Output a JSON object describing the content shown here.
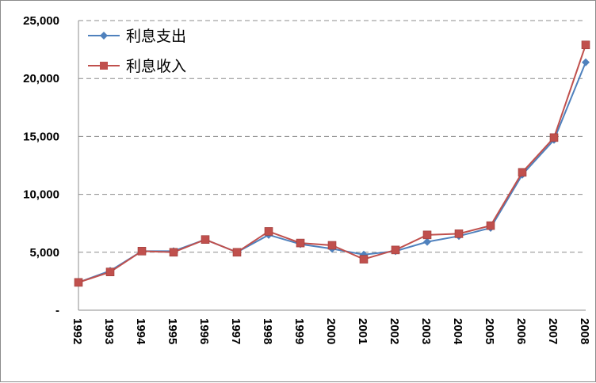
{
  "chart_data": {
    "type": "line",
    "title": "",
    "xlabel": "",
    "ylabel": "",
    "categories": [
      "1992",
      "1993",
      "1994",
      "1995",
      "1996",
      "1997",
      "1998",
      "1999",
      "2000",
      "2001",
      "2002",
      "2003",
      "2004",
      "2005",
      "2006",
      "2007",
      "2008"
    ],
    "ylim": [
      0,
      25000
    ],
    "y_ticks": [
      0,
      5000,
      10000,
      15000,
      20000,
      25000
    ],
    "y_tick_labels": [
      "-",
      "5,000",
      "10,000",
      "15,000",
      "20,000",
      "25,000"
    ],
    "grid": "horizontal-dashed",
    "legend_position": "top-left",
    "series": [
      {
        "name": "利息支出",
        "color": "#4F81BD",
        "marker": "diamond",
        "values": [
          2400,
          3400,
          5100,
          5100,
          6100,
          5000,
          6500,
          5700,
          5300,
          4800,
          5100,
          5900,
          6400,
          7100,
          11700,
          14700,
          21400
        ]
      },
      {
        "name": "利息收入",
        "color": "#C0504D",
        "marker": "square",
        "values": [
          2400,
          3300,
          5100,
          5000,
          6100,
          5000,
          6800,
          5800,
          5600,
          4400,
          5200,
          6500,
          6600,
          7300,
          11900,
          14900,
          22900
        ]
      }
    ]
  }
}
